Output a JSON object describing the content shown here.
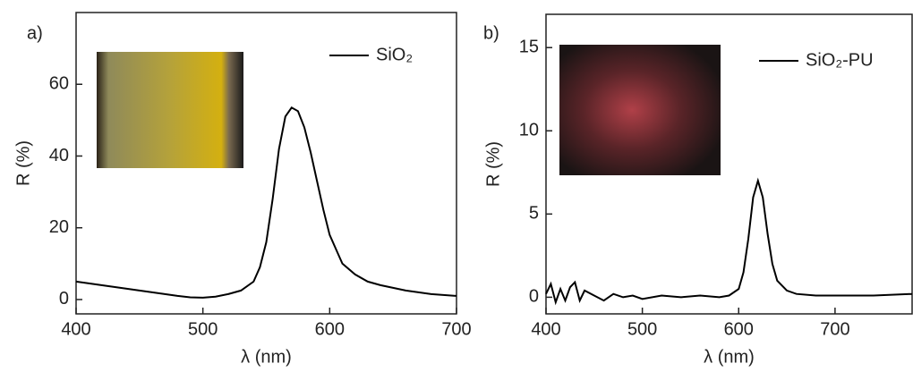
{
  "chart_data": [
    {
      "type": "line",
      "panel_label": "a)",
      "xlabel": "λ (nm)",
      "ylabel": "R (%)",
      "x": [
        400,
        410,
        420,
        430,
        440,
        450,
        460,
        470,
        480,
        490,
        500,
        510,
        520,
        530,
        540,
        545,
        550,
        555,
        560,
        565,
        570,
        575,
        580,
        585,
        590,
        595,
        600,
        610,
        620,
        630,
        640,
        660,
        680,
        700
      ],
      "series": [
        {
          "name": "SiO₂",
          "color": "#000000",
          "values": [
            5,
            4.5,
            4,
            3.5,
            3,
            2.5,
            2,
            1.5,
            1,
            0.6,
            0.5,
            0.8,
            1.5,
            2.5,
            5,
            9,
            16,
            28,
            42,
            51,
            53.5,
            52.5,
            48,
            41,
            33,
            25,
            18,
            10,
            7,
            5,
            4,
            2.5,
            1.5,
            1
          ]
        }
      ],
      "xlim": [
        400,
        700
      ],
      "xticks": [
        400,
        500,
        600,
        700
      ],
      "ylim": [
        -4,
        80
      ],
      "yticks": [
        0,
        20,
        40,
        60
      ]
    },
    {
      "type": "line",
      "panel_label": "b)",
      "xlabel": "λ (nm)",
      "ylabel": "R (%)",
      "x": [
        400,
        405,
        410,
        415,
        420,
        425,
        430,
        435,
        440,
        450,
        460,
        470,
        480,
        490,
        500,
        520,
        540,
        560,
        580,
        590,
        600,
        605,
        610,
        615,
        620,
        625,
        630,
        635,
        640,
        650,
        660,
        680,
        700,
        740,
        780
      ],
      "series": [
        {
          "name": "SiO₂-PU",
          "color": "#000000",
          "values": [
            0.2,
            0.8,
            -0.3,
            0.5,
            -0.2,
            0.6,
            0.9,
            -0.2,
            0.4,
            0.1,
            -0.2,
            0.2,
            0,
            0.1,
            -0.1,
            0.1,
            0,
            0.1,
            0,
            0.1,
            0.5,
            1.5,
            3.5,
            6,
            7,
            6,
            3.8,
            2,
            1,
            0.4,
            0.2,
            0.1,
            0.1,
            0.1,
            0.2
          ]
        }
      ],
      "xlim": [
        400,
        780
      ],
      "xticks": [
        400,
        500,
        600,
        700
      ],
      "ylim": [
        -1,
        17
      ],
      "yticks": [
        0,
        5,
        10,
        15
      ]
    }
  ]
}
